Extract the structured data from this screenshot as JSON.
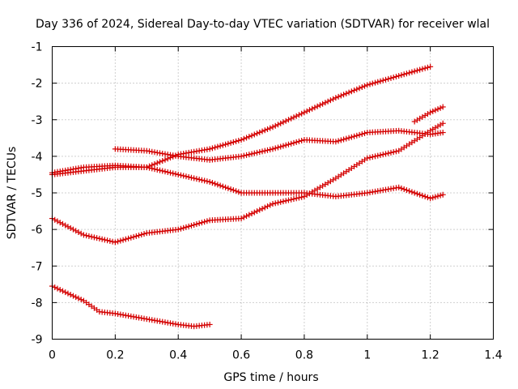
{
  "chart_data": {
    "type": "scatter",
    "title": "Day 336 of 2024, Sidereal Day-to-day VTEC variation (SDTVAR) for receiver wlal",
    "xlabel": "GPS time / hours",
    "ylabel": "SDTVAR / TECUs",
    "xlim": [
      0,
      1.4
    ],
    "ylim": [
      -9,
      -1
    ],
    "xticks": [
      0,
      0.2,
      0.4,
      0.6,
      0.8,
      1,
      1.2,
      1.4
    ],
    "xtick_labels": [
      "0",
      "0.2",
      "0.4",
      "0.6",
      "0.8",
      "1",
      "1.2",
      "1.4"
    ],
    "yticks": [
      -9,
      -8,
      -7,
      -6,
      -5,
      -4,
      -3,
      -2,
      -1
    ],
    "ytick_labels": [
      "-9",
      "-8",
      "-7",
      "-6",
      "-5",
      "-4",
      "-3",
      "-2",
      "-1"
    ],
    "grid": true,
    "marker": "+",
    "color": "#d40000",
    "series": [
      {
        "name": "track-1",
        "x": [
          0.0,
          0.1,
          0.2,
          0.3,
          0.4,
          0.5,
          0.6,
          0.7,
          0.8,
          0.9,
          1.0,
          1.1,
          1.2
        ],
        "y": [
          -4.5,
          -4.4,
          -4.3,
          -4.3,
          -3.95,
          -3.8,
          -3.55,
          -3.2,
          -2.8,
          -2.4,
          -2.05,
          -1.8,
          -1.55
        ]
      },
      {
        "name": "track-2",
        "x": [
          0.0,
          0.1,
          0.2,
          0.3,
          0.4,
          0.5,
          0.6,
          0.7,
          0.8,
          0.9,
          1.0,
          1.1,
          1.2,
          1.24
        ],
        "y": [
          -4.45,
          -4.3,
          -4.25,
          -4.3,
          -4.5,
          -4.7,
          -5.0,
          -5.0,
          -5.0,
          -5.1,
          -5.0,
          -4.85,
          -5.15,
          -5.05
        ]
      },
      {
        "name": "track-3",
        "x": [
          0.2,
          0.3,
          0.4,
          0.5,
          0.6,
          0.7,
          0.8,
          0.9,
          1.0,
          1.1,
          1.2,
          1.24
        ],
        "y": [
          -3.8,
          -3.85,
          -4.0,
          -4.1,
          -4.0,
          -3.8,
          -3.55,
          -3.6,
          -3.35,
          -3.3,
          -3.4,
          -3.35
        ]
      },
      {
        "name": "track-4",
        "x": [
          0.0,
          0.1,
          0.2,
          0.3,
          0.4,
          0.5,
          0.6,
          0.7,
          0.8,
          0.9,
          1.0,
          1.1,
          1.2,
          1.24
        ],
        "y": [
          -5.7,
          -6.15,
          -6.35,
          -6.1,
          -6.0,
          -5.75,
          -5.7,
          -5.3,
          -5.1,
          -4.6,
          -4.05,
          -3.85,
          -3.3,
          -3.1
        ]
      },
      {
        "name": "track-5",
        "x": [
          0.0,
          0.1,
          0.15,
          0.2,
          0.3,
          0.4,
          0.45,
          0.5
        ],
        "y": [
          -7.55,
          -7.95,
          -8.25,
          -8.3,
          -8.45,
          -8.6,
          -8.65,
          -8.6
        ]
      },
      {
        "name": "track-6",
        "x": [
          1.15,
          1.2,
          1.24
        ],
        "y": [
          -3.05,
          -2.8,
          -2.65
        ]
      }
    ]
  }
}
